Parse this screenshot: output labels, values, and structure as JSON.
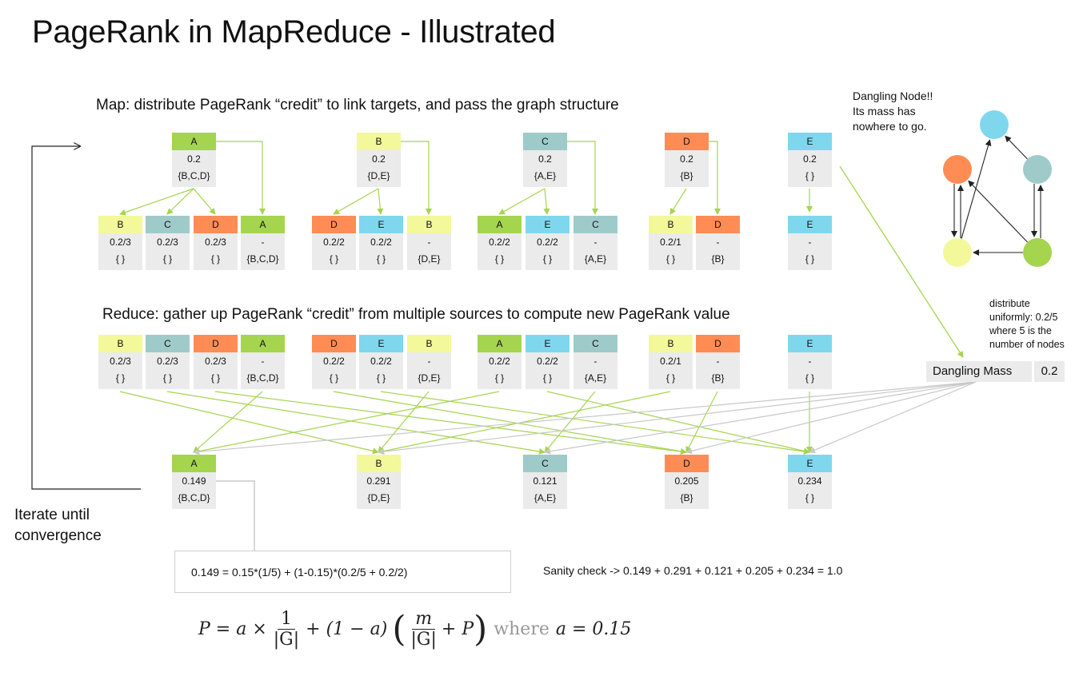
{
  "title": "PageRank in MapReduce - Illustrated",
  "map_heading": "Map: distribute PageRank “credit” to link targets, and pass the graph structure",
  "reduce_heading": "Reduce: gather up PageRank “credit” from multiple sources to compute new PageRank value",
  "iterate_label": "Iterate until\nconvergence",
  "dangling_note": "Dangling Node!!\nIts mass has\nnowhere to go.",
  "distribute_note": "distribute\nuniformly: 0.2/5\nwhere 5 is the\nnumber of nodes",
  "dangling_mass": {
    "label": "Dangling Mass",
    "value": "0.2"
  },
  "formula_example": "0.149 = 0.15*(1/5) + (1-0.15)*(0.2/5 + 0.2/2)",
  "sanity_check": "Sanity check ->  0.149 + 0.291 + 0.121 + 0.205 + 0.234 = 1.0",
  "general_formula": {
    "lhs": "P = a ×",
    "frac1_num": "1",
    "frac1_den": "|G|",
    "middle": "+ (1 − a)",
    "frac2_num": "m",
    "frac2_den": "|G|",
    "tail": "+ P",
    "where": "where",
    "cond": "a = 0.15"
  },
  "colors": {
    "A": "#a5d44f",
    "B": "#f3f89a",
    "C": "#9ecbc9",
    "D": "#ff8c55",
    "E": "#7fd7ee",
    "card_body": "#ebebeb",
    "arrow_green": "#a5d44f",
    "arrow_gray": "#c8c8c8"
  },
  "map_inputs": [
    {
      "node": "A",
      "rank": "0.2",
      "links": "{B,C,D}"
    },
    {
      "node": "B",
      "rank": "0.2",
      "links": "{D,E}"
    },
    {
      "node": "C",
      "rank": "0.2",
      "links": "{A,E}"
    },
    {
      "node": "D",
      "rank": "0.2",
      "links": "{B}"
    },
    {
      "node": "E",
      "rank": "0.2",
      "links": "{ }"
    }
  ],
  "map_outputs": [
    {
      "node": "B",
      "rank": "0.2/3",
      "links": "{ }"
    },
    {
      "node": "C",
      "rank": "0.2/3",
      "links": "{ }"
    },
    {
      "node": "D",
      "rank": "0.2/3",
      "links": "{ }"
    },
    {
      "node": "A",
      "rank": "-",
      "links": "{B,C,D}"
    },
    {
      "node": "D",
      "rank": "0.2/2",
      "links": "{ }"
    },
    {
      "node": "E",
      "rank": "0.2/2",
      "links": "{ }"
    },
    {
      "node": "B",
      "rank": "-",
      "links": "{D,E}"
    },
    {
      "node": "A",
      "rank": "0.2/2",
      "links": "{ }"
    },
    {
      "node": "E",
      "rank": "0.2/2",
      "links": "{ }"
    },
    {
      "node": "C",
      "rank": "-",
      "links": "{A,E}"
    },
    {
      "node": "B",
      "rank": "0.2/1",
      "links": "{ }"
    },
    {
      "node": "D",
      "rank": "-",
      "links": "{B}"
    },
    {
      "node": "E",
      "rank": "-",
      "links": "{ }"
    }
  ],
  "reduce_outputs": [
    {
      "node": "A",
      "rank": "0.149",
      "links": "{B,C,D}"
    },
    {
      "node": "B",
      "rank": "0.291",
      "links": "{D,E}"
    },
    {
      "node": "C",
      "rank": "0.121",
      "links": "{A,E}"
    },
    {
      "node": "D",
      "rank": "0.205",
      "links": "{B}"
    },
    {
      "node": "E",
      "rank": "0.234",
      "links": "{ }"
    }
  ],
  "graph": {
    "nodes": [
      "A",
      "B",
      "C",
      "D",
      "E"
    ],
    "edges": [
      [
        "A",
        "B"
      ],
      [
        "A",
        "C"
      ],
      [
        "A",
        "D"
      ],
      [
        "B",
        "D"
      ],
      [
        "B",
        "E"
      ],
      [
        "C",
        "A"
      ],
      [
        "C",
        "E"
      ],
      [
        "D",
        "B"
      ]
    ]
  }
}
